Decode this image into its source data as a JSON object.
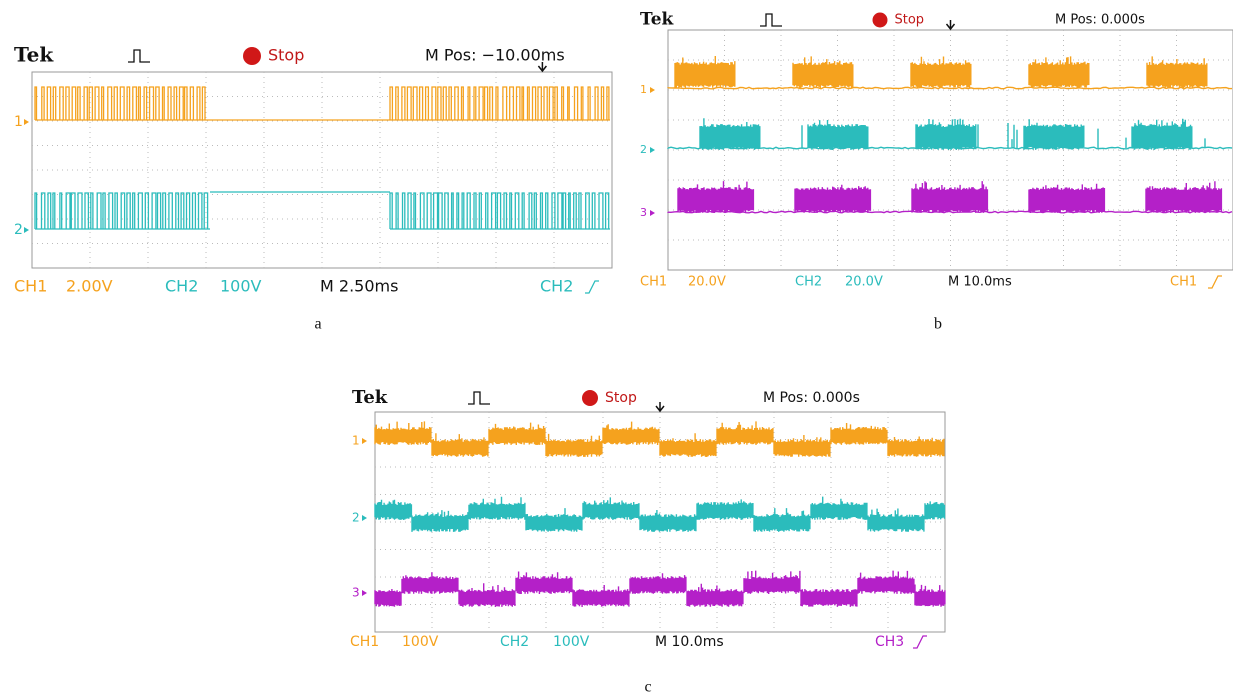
{
  "panels": [
    {
      "brand": "Tek",
      "status": "Stop",
      "position": "M Pos: −10.00ms",
      "channels": [
        "1",
        "2"
      ],
      "footer": [
        "CH1",
        "2.00V",
        "CH2",
        "100V",
        "M 2.50ms",
        "CH2"
      ],
      "caption": "a"
    },
    {
      "brand": "Tek",
      "status": "Stop",
      "position": "M Pos: 0.000s",
      "channels": [
        "1",
        "2",
        "3"
      ],
      "footer": [
        "CH1",
        "20.0V",
        "CH2",
        "20.0V",
        "M 10.0ms",
        "CH1"
      ],
      "caption": "b"
    },
    {
      "brand": "Tek",
      "status": "Stop",
      "position": "M Pos: 0.000s",
      "channels": [
        "1",
        "2",
        "3"
      ],
      "footer": [
        "CH1",
        "100V",
        "CH2",
        "100V",
        "M 10.0ms",
        "CH3"
      ],
      "caption": "c"
    }
  ]
}
